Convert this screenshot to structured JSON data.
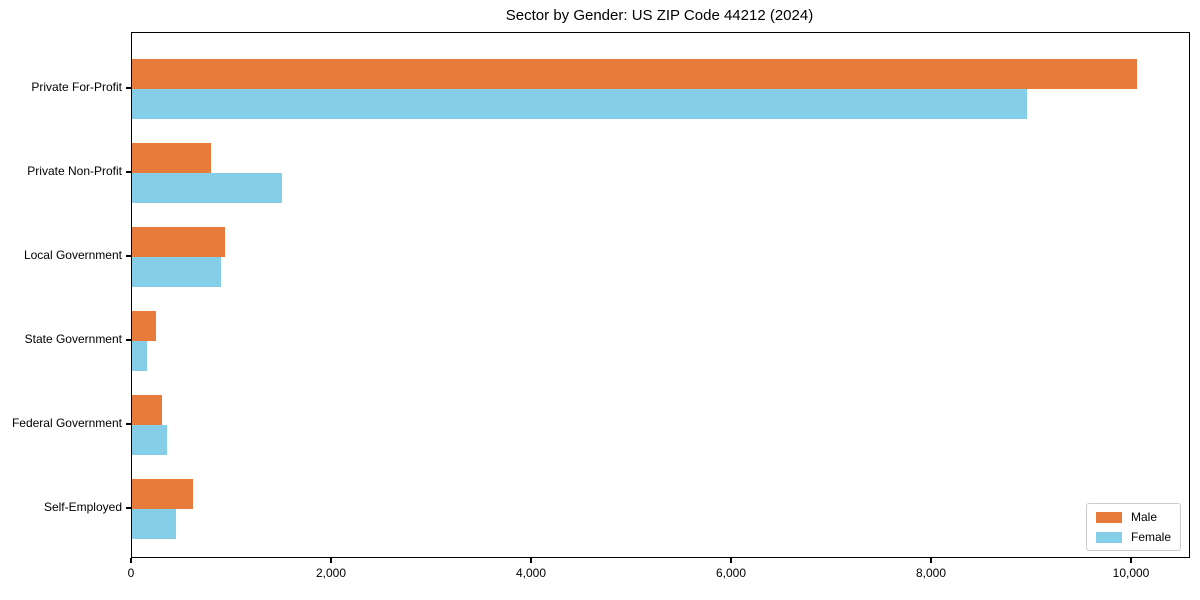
{
  "chart_data": {
    "type": "bar",
    "orientation": "horizontal",
    "title": "Sector by Gender: US ZIP Code 44212 (2024)",
    "categories": [
      "Private For-Profit",
      "Private Non-Profit",
      "Local Government",
      "State Government",
      "Federal Government",
      "Self-Employed"
    ],
    "series": [
      {
        "name": "Male",
        "color": "#e87a3c",
        "values": [
          10050,
          785,
          925,
          235,
          295,
          610
        ]
      },
      {
        "name": "Female",
        "color": "#85cee8",
        "values": [
          8950,
          1495,
          890,
          145,
          345,
          435
        ]
      }
    ],
    "xlabel": "",
    "ylabel": "",
    "xlim": [
      0,
      10570
    ],
    "xticks": [
      0,
      2000,
      4000,
      6000,
      8000,
      10000
    ],
    "xtick_labels": [
      "0",
      "2,000",
      "4,000",
      "6,000",
      "8,000",
      "10,000"
    ],
    "grid": false,
    "legend_position": "lower right",
    "axis_color": "#000000",
    "background_color": "#ffffff"
  }
}
